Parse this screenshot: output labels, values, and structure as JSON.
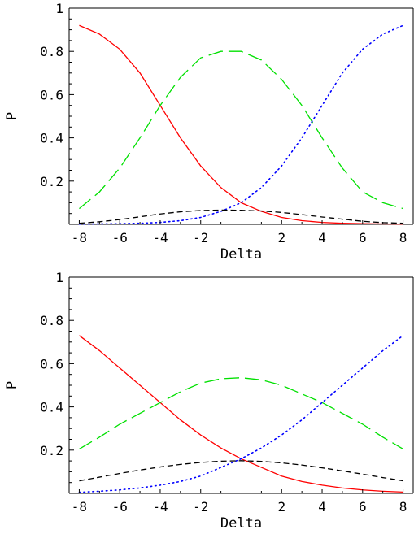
{
  "chart_data": [
    {
      "type": "line",
      "xlabel": "Delta",
      "ylabel": "P",
      "xlim": [
        -8.5,
        8.5
      ],
      "ylim": [
        0,
        1
      ],
      "x_ticks": [
        -8,
        -6,
        -4,
        -2,
        2,
        4,
        6,
        8
      ],
      "x_tick_labels": [
        "-8",
        "-6",
        "-4",
        "-2",
        "2",
        "4",
        "6",
        "8"
      ],
      "y_ticks": [
        0.2,
        0.4,
        0.6,
        0.8,
        1
      ],
      "y_tick_labels": [
        "0.2",
        "0.4",
        "0.6",
        "0.8",
        "1"
      ],
      "grid": false,
      "x": [
        -8,
        -7,
        -6,
        -5,
        -4,
        -3,
        -2,
        -1,
        0,
        1,
        2,
        3,
        4,
        5,
        6,
        7,
        8
      ],
      "series": [
        {
          "color": "#ff0000",
          "style": "solid",
          "values": [
            0.92,
            0.88,
            0.81,
            0.7,
            0.55,
            0.4,
            0.27,
            0.17,
            0.1,
            0.06,
            0.032,
            0.017,
            0.009,
            0.005,
            0.003,
            0.002,
            0.001
          ]
        },
        {
          "color": "#00e000",
          "style": "long-dash",
          "values": [
            0.073,
            0.15,
            0.26,
            0.4,
            0.55,
            0.68,
            0.77,
            0.8,
            0.8,
            0.76,
            0.67,
            0.55,
            0.4,
            0.26,
            0.15,
            0.1,
            0.073
          ]
        },
        {
          "color": "#0000ff",
          "style": "dotted",
          "values": [
            0.001,
            0.002,
            0.003,
            0.005,
            0.009,
            0.017,
            0.032,
            0.06,
            0.1,
            0.17,
            0.27,
            0.4,
            0.55,
            0.7,
            0.81,
            0.88,
            0.92
          ]
        },
        {
          "color": "#000000",
          "style": "dashed",
          "values": [
            0.005,
            0.012,
            0.022,
            0.035,
            0.048,
            0.058,
            0.064,
            0.066,
            0.065,
            0.062,
            0.055,
            0.045,
            0.034,
            0.024,
            0.014,
            0.008,
            0.005
          ]
        }
      ]
    },
    {
      "type": "line",
      "xlabel": "Delta",
      "ylabel": "P",
      "xlim": [
        -8.5,
        8.5
      ],
      "ylim": [
        0,
        1
      ],
      "x_ticks": [
        -8,
        -6,
        -4,
        -2,
        2,
        4,
        6,
        8
      ],
      "x_tick_labels": [
        "-8",
        "-6",
        "-4",
        "-2",
        "2",
        "4",
        "6",
        "8"
      ],
      "y_ticks": [
        0.2,
        0.4,
        0.6,
        0.8,
        1
      ],
      "y_tick_labels": [
        "0.2",
        "0.4",
        "0.6",
        "0.8",
        "1"
      ],
      "grid": false,
      "x": [
        -8,
        -7,
        -6,
        -5,
        -4,
        -3,
        -2,
        -1,
        0,
        1,
        2,
        3,
        4,
        5,
        6,
        7,
        8
      ],
      "series": [
        {
          "color": "#ff0000",
          "style": "solid",
          "values": [
            0.73,
            0.66,
            0.58,
            0.5,
            0.42,
            0.34,
            0.27,
            0.21,
            0.16,
            0.12,
            0.08,
            0.055,
            0.038,
            0.025,
            0.016,
            0.01,
            0.006
          ]
        },
        {
          "color": "#00e000",
          "style": "long-dash",
          "values": [
            0.205,
            0.26,
            0.32,
            0.37,
            0.42,
            0.47,
            0.51,
            0.53,
            0.535,
            0.525,
            0.5,
            0.46,
            0.42,
            0.37,
            0.32,
            0.26,
            0.205
          ]
        },
        {
          "color": "#0000ff",
          "style": "dotted",
          "values": [
            0.005,
            0.01,
            0.016,
            0.025,
            0.038,
            0.055,
            0.08,
            0.12,
            0.16,
            0.21,
            0.27,
            0.34,
            0.42,
            0.5,
            0.58,
            0.66,
            0.73
          ]
        },
        {
          "color": "#000000",
          "style": "dashed",
          "values": [
            0.058,
            0.075,
            0.092,
            0.108,
            0.122,
            0.134,
            0.143,
            0.149,
            0.151,
            0.148,
            0.141,
            0.131,
            0.118,
            0.104,
            0.089,
            0.073,
            0.058
          ]
        }
      ]
    }
  ]
}
